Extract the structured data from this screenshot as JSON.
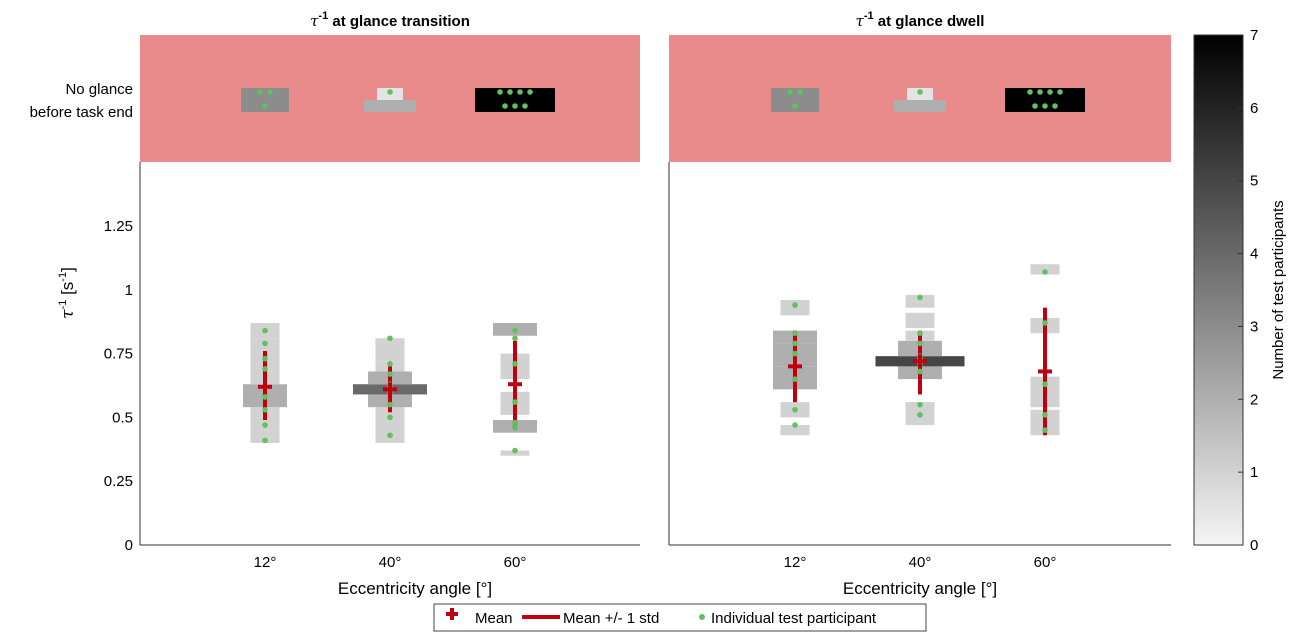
{
  "chart_data": {
    "type": "heatmap",
    "panels": [
      {
        "title_main": "τ",
        "title_sup": "-1",
        "title_rest": " at glance transition",
        "xlabel": "Eccentricity angle [°]",
        "categories": [
          "12°",
          "40°",
          "60°"
        ],
        "no_glance_label_line1": "No glance",
        "no_glance_label_line2": "before task end",
        "no_glance_counts": [
          3,
          1,
          7
        ],
        "columns": [
          {
            "category": "12°",
            "mean": 0.62,
            "std_low": 0.49,
            "std_high": 0.76,
            "bins": [
              [
                0.4,
                0.45,
                1
              ],
              [
                0.45,
                0.54,
                1
              ],
              [
                0.54,
                0.63,
                2
              ],
              [
                0.63,
                0.69,
                1
              ],
              [
                0.69,
                0.75,
                1
              ],
              [
                0.75,
                0.81,
                1
              ],
              [
                0.81,
                0.87,
                1
              ]
            ],
            "points": [
              0.41,
              0.47,
              0.53,
              0.58,
              0.62,
              0.69,
              0.73,
              0.79,
              0.84
            ]
          },
          {
            "category": "40°",
            "mean": 0.61,
            "std_low": 0.52,
            "std_high": 0.7,
            "bins": [
              [
                0.4,
                0.48,
                1
              ],
              [
                0.48,
                0.54,
                1
              ],
              [
                0.54,
                0.59,
                2
              ],
              [
                0.59,
                0.63,
                4
              ],
              [
                0.63,
                0.68,
                2
              ],
              [
                0.68,
                0.72,
                1
              ],
              [
                0.72,
                0.81,
                1
              ]
            ],
            "points": [
              0.43,
              0.5,
              0.55,
              0.6,
              0.61,
              0.62,
              0.63,
              0.67,
              0.71,
              0.81
            ]
          },
          {
            "category": "60°",
            "mean": 0.63,
            "std_low": 0.45,
            "std_high": 0.8,
            "bins": [
              [
                0.35,
                0.37,
                1
              ],
              [
                0.44,
                0.49,
                2
              ],
              [
                0.51,
                0.6,
                1
              ],
              [
                0.65,
                0.75,
                1
              ],
              [
                0.82,
                0.87,
                2
              ]
            ],
            "points": [
              0.37,
              0.46,
              0.48,
              0.56,
              0.71,
              0.81,
              0.84
            ]
          }
        ]
      },
      {
        "title_main": "τ",
        "title_sup": "-1",
        "title_rest": " at glance dwell",
        "xlabel": "Eccentricity angle [°]",
        "categories": [
          "12°",
          "40°",
          "60°"
        ],
        "no_glance_counts": [
          3,
          1,
          7
        ],
        "columns": [
          {
            "category": "12°",
            "mean": 0.7,
            "std_low": 0.56,
            "std_high": 0.84,
            "bins": [
              [
                0.43,
                0.47,
                1
              ],
              [
                0.5,
                0.56,
                1
              ],
              [
                0.61,
                0.7,
                2
              ],
              [
                0.7,
                0.79,
                2
              ],
              [
                0.79,
                0.84,
                2
              ],
              [
                0.9,
                0.96,
                1
              ]
            ],
            "points": [
              0.47,
              0.53,
              0.65,
              0.7,
              0.75,
              0.79,
              0.83,
              0.94
            ]
          },
          {
            "category": "40°",
            "mean": 0.72,
            "std_low": 0.59,
            "std_high": 0.84,
            "bins": [
              [
                0.47,
                0.56,
                1
              ],
              [
                0.65,
                0.7,
                2
              ],
              [
                0.7,
                0.74,
                5
              ],
              [
                0.74,
                0.8,
                2
              ],
              [
                0.8,
                0.84,
                1
              ],
              [
                0.85,
                0.91,
                1
              ],
              [
                0.93,
                0.98,
                1
              ]
            ],
            "points": [
              0.51,
              0.55,
              0.68,
              0.71,
              0.72,
              0.73,
              0.74,
              0.79,
              0.83,
              0.97
            ]
          },
          {
            "category": "60°",
            "mean": 0.68,
            "std_low": 0.43,
            "std_high": 0.93,
            "bins": [
              [
                0.43,
                0.53,
                1
              ],
              [
                0.54,
                0.66,
                1
              ],
              [
                0.83,
                0.89,
                1
              ],
              [
                1.06,
                1.1,
                1
              ]
            ],
            "points": [
              0.45,
              0.51,
              0.63,
              0.87,
              1.07
            ]
          }
        ]
      }
    ],
    "y_label_main": "τ",
    "y_label_sup": "-1",
    "y_label_rest": " [s",
    "y_label_unit_sup": "-1",
    "y_label_close": "]",
    "y_ticks": [
      "0",
      "0.25",
      "0.5",
      "0.75",
      "1",
      "1.25"
    ],
    "y_tick_values": [
      0,
      0.25,
      0.5,
      0.75,
      1,
      1.25
    ],
    "ylim": [
      0,
      1.4
    ],
    "colorbar": {
      "label": "Number of test participants",
      "ticks": [
        "0",
        "1",
        "2",
        "3",
        "4",
        "5",
        "6",
        "7"
      ],
      "min": 0,
      "max": 7
    },
    "legend": {
      "mean": "Mean",
      "std": "Mean +/- 1 std",
      "individual": "Individual test participant"
    },
    "colors": {
      "no_glance_band": "#ea8b8b",
      "mean_marker": "#c0000e",
      "individual_point": "#5fc15f"
    }
  }
}
